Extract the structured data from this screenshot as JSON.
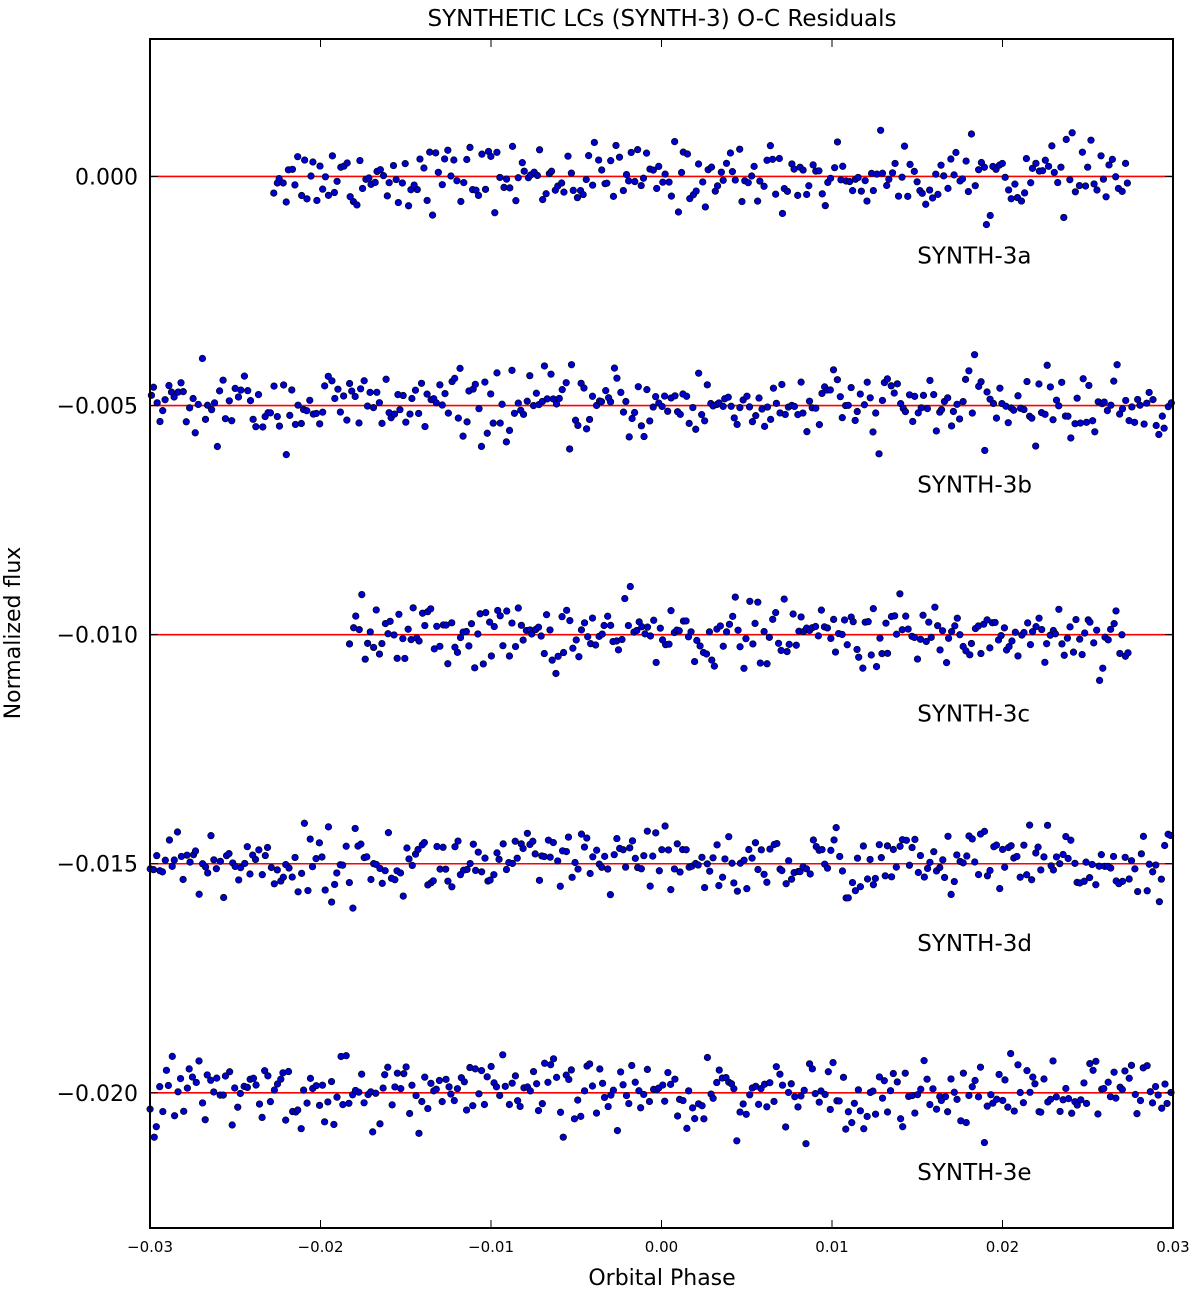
{
  "chart_data": {
    "type": "scatter",
    "title": "SYNTHETIC LCs (SYNTH-3) O-C Residuals",
    "xlabel": "Orbital Phase",
    "ylabel": "Normalized flux",
    "xlim": [
      -0.03,
      0.03
    ],
    "ylim": [
      -0.02295,
      0.003
    ],
    "xticks": [
      -0.03,
      -0.02,
      -0.01,
      0.0,
      0.01,
      0.02,
      0.03
    ],
    "xtick_labels": [
      "−0.03",
      "−0.02",
      "−0.01",
      "0.00",
      "0.01",
      "0.02",
      "0.03"
    ],
    "yticks": [
      0.0,
      -0.005,
      -0.01,
      -0.015,
      -0.02
    ],
    "ytick_labels": [
      "0.000",
      "−0.005",
      "−0.010",
      "−0.015",
      "−0.020"
    ],
    "grid": false,
    "marker_color": "#0000cc",
    "line_color": "#ff0000",
    "series": [
      {
        "name": "SYNTH-3a",
        "level": 0.0,
        "x_range": [
          -0.0228,
          0.0275
        ],
        "scatter_sigma": 0.00035,
        "points": 280,
        "label_x": 0.015
      },
      {
        "name": "SYNTH-3b",
        "level": -0.005,
        "x_range": [
          -0.03,
          0.03
        ],
        "scatter_sigma": 0.00037,
        "points": 340,
        "label_x": 0.015
      },
      {
        "name": "SYNTH-3c",
        "level": -0.01,
        "x_range": [
          -0.0183,
          0.0275
        ],
        "scatter_sigma": 0.00035,
        "points": 270,
        "label_x": 0.015
      },
      {
        "name": "SYNTH-3d",
        "level": -0.015,
        "x_range": [
          -0.03,
          0.03
        ],
        "scatter_sigma": 0.00037,
        "points": 340,
        "label_x": 0.015
      },
      {
        "name": "SYNTH-3e",
        "level": -0.02,
        "x_range": [
          -0.03,
          0.03
        ],
        "scatter_sigma": 0.00037,
        "points": 340,
        "label_x": 0.015
      }
    ]
  }
}
